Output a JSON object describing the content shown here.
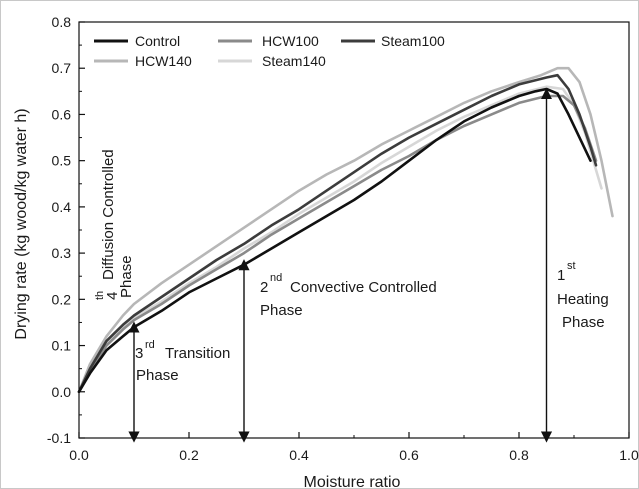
{
  "chart_data": {
    "type": "line",
    "xlabel": "Moisture ratio",
    "ylabel": "Drying rate (kg wood/kg water h)",
    "xlim": [
      0.0,
      1.0
    ],
    "ylim": [
      -0.1,
      0.8
    ],
    "xticks": [
      "0.0",
      "0.2",
      "0.4",
      "0.6",
      "0.8",
      "1.0"
    ],
    "yticks": [
      "-0.1",
      "0.0",
      "0.1",
      "0.2",
      "0.3",
      "0.4",
      "0.5",
      "0.6",
      "0.7",
      "0.8"
    ],
    "legend_position": "top-left",
    "series": [
      {
        "name": "Control",
        "color": "#111111",
        "points": [
          [
            0.0,
            0.0
          ],
          [
            0.02,
            0.04
          ],
          [
            0.05,
            0.09
          ],
          [
            0.08,
            0.12
          ],
          [
            0.1,
            0.14
          ],
          [
            0.15,
            0.175
          ],
          [
            0.2,
            0.215
          ],
          [
            0.25,
            0.245
          ],
          [
            0.3,
            0.275
          ],
          [
            0.35,
            0.31
          ],
          [
            0.4,
            0.345
          ],
          [
            0.45,
            0.38
          ],
          [
            0.5,
            0.415
          ],
          [
            0.55,
            0.455
          ],
          [
            0.6,
            0.5
          ],
          [
            0.65,
            0.545
          ],
          [
            0.7,
            0.585
          ],
          [
            0.75,
            0.615
          ],
          [
            0.8,
            0.64
          ],
          [
            0.83,
            0.65
          ],
          [
            0.85,
            0.655
          ],
          [
            0.87,
            0.645
          ],
          [
            0.89,
            0.6
          ],
          [
            0.91,
            0.55
          ],
          [
            0.93,
            0.5
          ]
        ]
      },
      {
        "name": "HCW100",
        "color": "#8a8a8a",
        "points": [
          [
            0.0,
            0.0
          ],
          [
            0.02,
            0.045
          ],
          [
            0.05,
            0.1
          ],
          [
            0.08,
            0.135
          ],
          [
            0.1,
            0.155
          ],
          [
            0.15,
            0.19
          ],
          [
            0.2,
            0.23
          ],
          [
            0.25,
            0.265
          ],
          [
            0.3,
            0.3
          ],
          [
            0.35,
            0.34
          ],
          [
            0.4,
            0.375
          ],
          [
            0.45,
            0.41
          ],
          [
            0.5,
            0.445
          ],
          [
            0.55,
            0.48
          ],
          [
            0.6,
            0.51
          ],
          [
            0.65,
            0.545
          ],
          [
            0.7,
            0.575
          ],
          [
            0.75,
            0.6
          ],
          [
            0.8,
            0.625
          ],
          [
            0.85,
            0.64
          ],
          [
            0.88,
            0.64
          ],
          [
            0.9,
            0.62
          ],
          [
            0.92,
            0.57
          ],
          [
            0.94,
            0.5
          ]
        ]
      },
      {
        "name": "Steam100",
        "color": "#3c3c3c",
        "points": [
          [
            0.0,
            0.0
          ],
          [
            0.02,
            0.05
          ],
          [
            0.05,
            0.11
          ],
          [
            0.08,
            0.145
          ],
          [
            0.1,
            0.165
          ],
          [
            0.15,
            0.205
          ],
          [
            0.2,
            0.245
          ],
          [
            0.25,
            0.285
          ],
          [
            0.3,
            0.32
          ],
          [
            0.35,
            0.36
          ],
          [
            0.4,
            0.395
          ],
          [
            0.45,
            0.435
          ],
          [
            0.5,
            0.475
          ],
          [
            0.55,
            0.515
          ],
          [
            0.6,
            0.55
          ],
          [
            0.65,
            0.58
          ],
          [
            0.7,
            0.61
          ],
          [
            0.75,
            0.64
          ],
          [
            0.8,
            0.665
          ],
          [
            0.85,
            0.68
          ],
          [
            0.87,
            0.685
          ],
          [
            0.89,
            0.655
          ],
          [
            0.91,
            0.6
          ],
          [
            0.93,
            0.53
          ],
          [
            0.94,
            0.49
          ]
        ]
      },
      {
        "name": "HCW140",
        "color": "#b7b7b7",
        "points": [
          [
            0.0,
            0.0
          ],
          [
            0.02,
            0.06
          ],
          [
            0.05,
            0.12
          ],
          [
            0.08,
            0.165
          ],
          [
            0.1,
            0.19
          ],
          [
            0.15,
            0.235
          ],
          [
            0.2,
            0.275
          ],
          [
            0.25,
            0.315
          ],
          [
            0.3,
            0.355
          ],
          [
            0.35,
            0.395
          ],
          [
            0.4,
            0.435
          ],
          [
            0.45,
            0.47
          ],
          [
            0.5,
            0.5
          ],
          [
            0.55,
            0.535
          ],
          [
            0.6,
            0.565
          ],
          [
            0.65,
            0.595
          ],
          [
            0.7,
            0.625
          ],
          [
            0.75,
            0.65
          ],
          [
            0.8,
            0.67
          ],
          [
            0.84,
            0.685
          ],
          [
            0.87,
            0.7
          ],
          [
            0.89,
            0.7
          ],
          [
            0.91,
            0.67
          ],
          [
            0.93,
            0.6
          ],
          [
            0.95,
            0.5
          ],
          [
            0.97,
            0.38
          ]
        ]
      },
      {
        "name": "Steam140",
        "color": "#d7d7d7",
        "points": [
          [
            0.0,
            0.0
          ],
          [
            0.02,
            0.05
          ],
          [
            0.05,
            0.105
          ],
          [
            0.08,
            0.14
          ],
          [
            0.1,
            0.16
          ],
          [
            0.15,
            0.195
          ],
          [
            0.2,
            0.235
          ],
          [
            0.25,
            0.27
          ],
          [
            0.3,
            0.31
          ],
          [
            0.35,
            0.345
          ],
          [
            0.4,
            0.385
          ],
          [
            0.45,
            0.42
          ],
          [
            0.5,
            0.455
          ],
          [
            0.55,
            0.495
          ],
          [
            0.6,
            0.53
          ],
          [
            0.65,
            0.565
          ],
          [
            0.7,
            0.595
          ],
          [
            0.75,
            0.62
          ],
          [
            0.8,
            0.645
          ],
          [
            0.85,
            0.66
          ],
          [
            0.88,
            0.655
          ],
          [
            0.9,
            0.62
          ],
          [
            0.92,
            0.56
          ],
          [
            0.94,
            0.48
          ],
          [
            0.95,
            0.44
          ]
        ]
      }
    ],
    "phase_markers": [
      {
        "x": 0.1,
        "y_top": 0.14
      },
      {
        "x": 0.3,
        "y_top": 0.275
      },
      {
        "x": 0.85,
        "y_top": 0.645
      }
    ],
    "annotations": {
      "phase4": {
        "sup": "th",
        "num": "4",
        "line1": "Diffusion Controlled",
        "line2": "Phase"
      },
      "phase3": {
        "num": "3",
        "sup": "rd",
        "line1": "Transition",
        "line2": "Phase"
      },
      "phase2": {
        "num": "2",
        "sup": "nd",
        "line1": "Convective Controlled",
        "line2": "Phase"
      },
      "phase1": {
        "num": "1",
        "sup": "st",
        "line2": "Heating",
        "line3": "Phase"
      }
    }
  }
}
